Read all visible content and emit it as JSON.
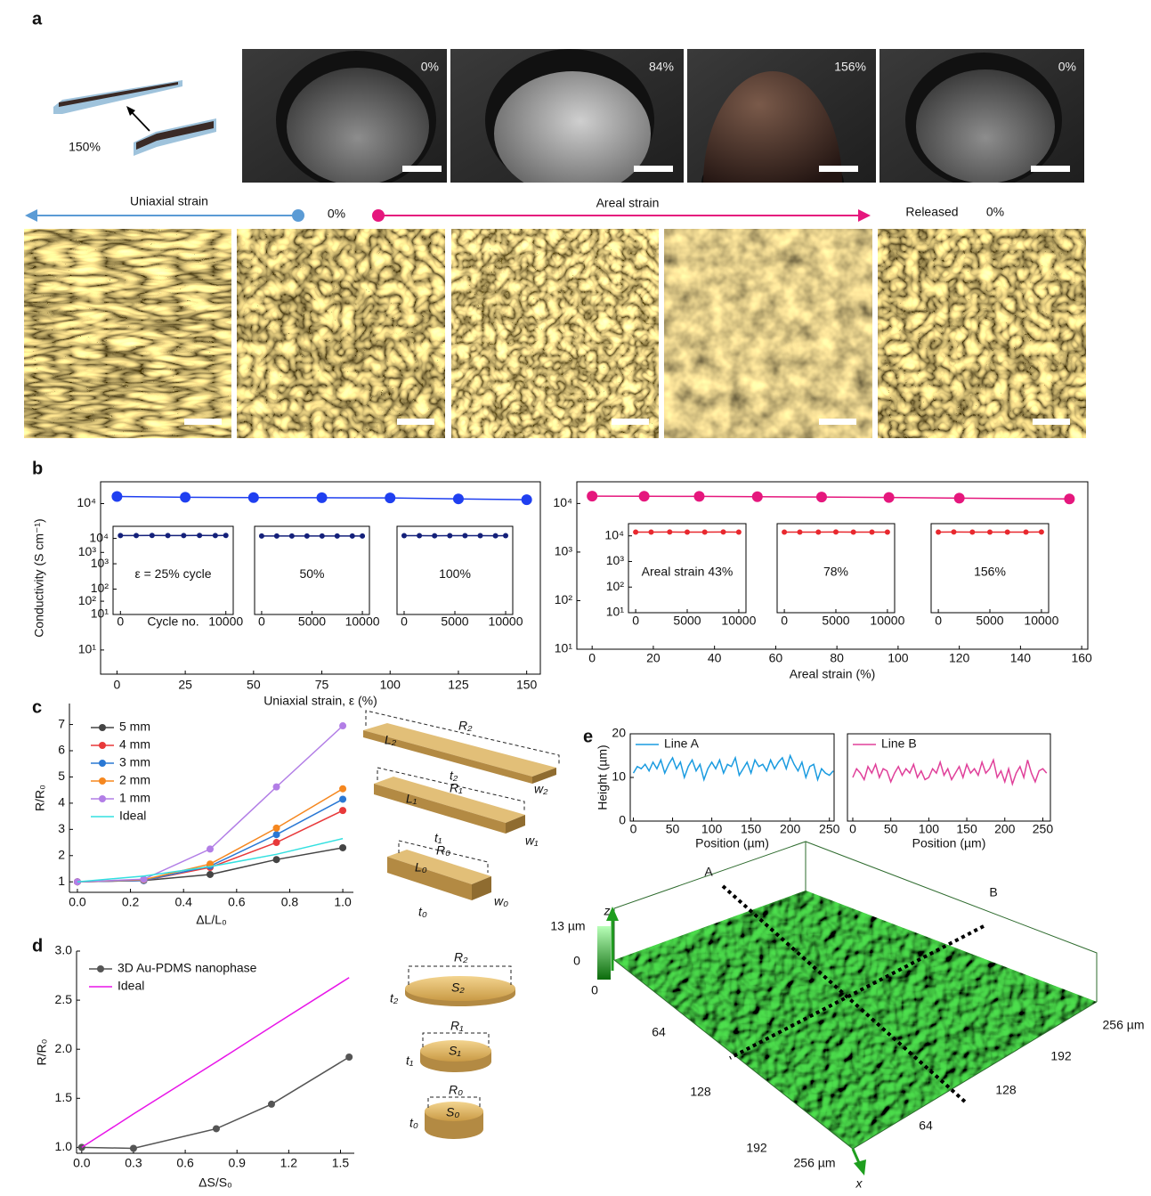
{
  "figure": {
    "panel_labels": [
      "a",
      "b",
      "c",
      "d",
      "e"
    ],
    "strip_label": "150%",
    "photo_labels": [
      "0%",
      "84%",
      "156%",
      "0%"
    ],
    "strain_row": {
      "uniaxial": "Uniaxial strain",
      "zero": "0%",
      "areal": "Areal strain",
      "released": "Released",
      "released_value": "0%"
    },
    "bar_labels": [
      "R₂",
      "L₂",
      "t₂",
      "w₂",
      "R₁",
      "L₁",
      "t₁",
      "w₁",
      "R₀",
      "L₀",
      "t₀",
      "w₀"
    ],
    "disc_labels": [
      "R₂",
      "S₂",
      "t₂",
      "R₁",
      "S₁",
      "t₁",
      "R₀",
      "S₀",
      "t₀"
    ],
    "surface_labels": {
      "z": "z",
      "z_max": "13 µm",
      "z_min": "0",
      "origin": "0",
      "x_ticks": [
        "64",
        "128",
        "192",
        "256 µm"
      ],
      "y_ticks": [
        "64",
        "128",
        "192",
        "256 µm"
      ],
      "x": "x",
      "line_a": "A",
      "line_b": "B"
    }
  },
  "chart_data": [
    {
      "type": "line",
      "xlabel": "Uniaxial strain, ε (%)",
      "ylabel": "Conductivity (S cm⁻¹)",
      "x": [
        0,
        25,
        50,
        75,
        100,
        125,
        150
      ],
      "xlim": [
        -6,
        155
      ],
      "xticks": [
        0,
        25,
        50,
        75,
        100,
        125,
        150
      ],
      "ylim": [
        3.2,
        28000
      ],
      "yscale": "log",
      "yticks": [
        {
          "value": 10,
          "label": "10¹"
        },
        {
          "value": 100,
          "label": "10²"
        },
        {
          "value": 1000,
          "label": "10³"
        },
        {
          "value": 10000,
          "label": "10⁴"
        }
      ],
      "series": [
        {
          "color": "#1f3ff0",
          "marker": true,
          "values": [
            14000,
            13500,
            13300,
            13200,
            13100,
            12500,
            12000
          ]
        }
      ]
    },
    {
      "type": "line",
      "xlabel": "Cycle no.",
      "annotation": "ε = 25% cycle",
      "x": [
        0,
        1500,
        3000,
        4500,
        6000,
        7500,
        9000,
        10000
      ],
      "xlim": [
        -700,
        10700
      ],
      "xticks": [
        0,
        10000
      ],
      "ylim": [
        10,
        30000
      ],
      "yscale": "log",
      "yticks": [
        {
          "value": 10,
          "label": "10¹"
        },
        {
          "value": 100,
          "label": "10²"
        },
        {
          "value": 1000,
          "label": "10³"
        },
        {
          "value": 10000,
          "label": "10⁴"
        }
      ],
      "series": [
        {
          "color": "#14207a",
          "marker": true,
          "values": [
            13000,
            13000,
            13100,
            13000,
            13000,
            13100,
            13000,
            13100
          ]
        }
      ]
    },
    {
      "type": "line",
      "annotation": "50%",
      "x": [
        0,
        1500,
        3000,
        4500,
        6000,
        7500,
        9000,
        10000
      ],
      "xlim": [
        -700,
        10700
      ],
      "xticks": [
        0,
        5000,
        10000
      ],
      "ylim": [
        10,
        30000
      ],
      "yscale": "log",
      "series": [
        {
          "color": "#14207a",
          "marker": true,
          "values": [
            12500,
            12400,
            12500,
            12500,
            12400,
            12500,
            12500,
            12500
          ]
        }
      ]
    },
    {
      "type": "line",
      "annotation": "100%",
      "x": [
        0,
        1500,
        3000,
        4500,
        6000,
        7500,
        9000,
        10000
      ],
      "xlim": [
        -700,
        10700
      ],
      "xticks": [
        0,
        5000,
        10000
      ],
      "ylim": [
        10,
        30000
      ],
      "yscale": "log",
      "series": [
        {
          "color": "#14207a",
          "marker": true,
          "values": [
            12800,
            12800,
            12700,
            12800,
            12800,
            12800,
            12700,
            12800
          ]
        }
      ]
    },
    {
      "type": "line",
      "xlabel": "Areal strain (%)",
      "x": [
        0,
        17,
        35,
        54,
        75,
        97,
        120,
        156
      ],
      "xlim": [
        -5,
        162
      ],
      "xticks": [
        0,
        20,
        40,
        60,
        80,
        100,
        120,
        140,
        160
      ],
      "ylim": [
        10,
        28000
      ],
      "yscale": "log",
      "yticks": [
        {
          "value": 10,
          "label": "10¹"
        },
        {
          "value": 100,
          "label": "10²"
        },
        {
          "value": 1000,
          "label": "10³"
        },
        {
          "value": 10000,
          "label": "10⁴"
        }
      ],
      "series": [
        {
          "color": "#e5177d",
          "marker": true,
          "values": [
            14200,
            14100,
            14000,
            13800,
            13600,
            13300,
            12900,
            12400
          ]
        }
      ]
    },
    {
      "type": "line",
      "annotation": "Areal strain 43%",
      "x": [
        0,
        1500,
        3300,
        5000,
        6700,
        8500,
        10000
      ],
      "xlim": [
        -700,
        10700
      ],
      "xticks": [
        0,
        5000,
        10000
      ],
      "ylim": [
        10,
        30000
      ],
      "yscale": "log",
      "yticks": [
        {
          "value": 10,
          "label": "10¹"
        },
        {
          "value": 100,
          "label": "10²"
        },
        {
          "value": 1000,
          "label": "10³"
        },
        {
          "value": 10000,
          "label": "10⁴"
        }
      ],
      "series": [
        {
          "color": "#e8282e",
          "marker": true,
          "values": [
            14000,
            14000,
            14100,
            14000,
            14000,
            14100,
            14000
          ]
        }
      ]
    },
    {
      "type": "line",
      "annotation": "78%",
      "x": [
        0,
        1500,
        3300,
        5000,
        6700,
        8500,
        10000
      ],
      "xlim": [
        -700,
        10700
      ],
      "xticks": [
        0,
        5000,
        10000
      ],
      "ylim": [
        10,
        30000
      ],
      "yscale": "log",
      "series": [
        {
          "color": "#e8282e",
          "marker": true,
          "values": [
            14000,
            14000,
            14000,
            14100,
            14000,
            14000,
            14000
          ]
        }
      ]
    },
    {
      "type": "line",
      "annotation": "156%",
      "x": [
        0,
        1500,
        3300,
        5000,
        6700,
        8500,
        10000
      ],
      "xlim": [
        -700,
        10700
      ],
      "xticks": [
        0,
        5000,
        10000
      ],
      "ylim": [
        10,
        30000
      ],
      "yscale": "log",
      "series": [
        {
          "color": "#e8282e",
          "marker": true,
          "values": [
            14000,
            14100,
            14000,
            14000,
            14000,
            14000,
            14100
          ]
        }
      ]
    },
    {
      "type": "line",
      "xlabel": "ΔL/L₀",
      "ylabel": "R/R₀",
      "legend": "upper left",
      "x": [
        0,
        0.25,
        0.5,
        0.75,
        1.0
      ],
      "xlim": [
        -0.03,
        1.04
      ],
      "xticks": [
        {
          "value": 0,
          "label": "0.0"
        },
        0.2,
        0.4,
        0.6,
        0.8,
        {
          "value": 1,
          "label": "1.0"
        }
      ],
      "ylim": [
        0.6,
        7.8
      ],
      "yticks": [
        1,
        2,
        3,
        4,
        5,
        6,
        7
      ],
      "series": [
        {
          "name": "5 mm",
          "color": "#444444",
          "marker": true,
          "values": [
            1.0,
            1.05,
            1.28,
            1.85,
            2.3
          ]
        },
        {
          "name": "4 mm",
          "color": "#e8393a",
          "marker": true,
          "values": [
            1.0,
            1.05,
            1.55,
            2.5,
            3.72
          ]
        },
        {
          "name": "3 mm",
          "color": "#2a78d4",
          "marker": true,
          "values": [
            1.0,
            1.05,
            1.6,
            2.8,
            4.15
          ]
        },
        {
          "name": "2 mm",
          "color": "#f5871f",
          "marker": true,
          "values": [
            1.0,
            1.08,
            1.68,
            3.05,
            4.55
          ]
        },
        {
          "name": "1 mm",
          "color": "#b27ee6",
          "marker": true,
          "values": [
            1.0,
            1.1,
            2.25,
            4.62,
            6.95
          ]
        },
        {
          "name": "Ideal",
          "color": "#33e0e0",
          "marker": false,
          "values": [
            1.0,
            1.22,
            1.58,
            2.05,
            2.65
          ]
        }
      ]
    },
    {
      "type": "line",
      "xlabel": "ΔS/S₀",
      "ylabel": "R/R₀",
      "legend": "upper left",
      "x": [
        0,
        0.3,
        0.78,
        1.1,
        1.55
      ],
      "xlim": [
        -0.03,
        1.58
      ],
      "xticks": [
        {
          "value": 0,
          "label": "0.0"
        },
        0.3,
        0.6,
        0.9,
        1.2,
        1.5
      ],
      "ylim": [
        0.94,
        3.0
      ],
      "yticks": [
        {
          "value": 1,
          "label": "1.0"
        },
        1.5,
        {
          "value": 2,
          "label": "2.0"
        },
        2.5,
        {
          "value": 3,
          "label": "3.0"
        }
      ],
      "series": [
        {
          "name": "3D Au-PDMS nanophase",
          "color": "#555555",
          "marker": true,
          "values": [
            1.0,
            0.99,
            1.19,
            1.44,
            1.92
          ]
        },
        {
          "name": "Ideal",
          "color": "#e815e8",
          "marker": false,
          "values": [
            1.0,
            1.34,
            1.87,
            2.23,
            2.73
          ]
        }
      ]
    },
    {
      "type": "line",
      "xlabel": "Position (µm)",
      "ylabel": "Height (µm)",
      "legend": "upper left",
      "x": [
        0,
        5,
        10,
        15,
        20,
        25,
        30,
        35,
        40,
        45,
        50,
        55,
        60,
        65,
        70,
        75,
        80,
        85,
        90,
        95,
        100,
        105,
        110,
        115,
        120,
        125,
        130,
        135,
        140,
        145,
        150,
        155,
        160,
        165,
        170,
        175,
        180,
        185,
        190,
        195,
        200,
        205,
        210,
        215,
        220,
        225,
        230,
        235,
        240,
        245,
        250,
        255
      ],
      "xlim": [
        -4,
        256
      ],
      "xticks": [
        0,
        50,
        100,
        150,
        200,
        250
      ],
      "ylim": [
        0,
        20
      ],
      "yticks": [
        0,
        10,
        20
      ],
      "series": [
        {
          "name": "Line A",
          "color": "#1a9be0",
          "marker": false,
          "values": [
            11,
            12.5,
            12,
            13,
            11.5,
            13.5,
            12,
            14,
            11,
            13,
            14.5,
            12,
            13.5,
            10,
            12.5,
            14,
            11.5,
            13,
            9.5,
            12,
            13.5,
            12,
            14,
            11,
            13,
            12.5,
            14.5,
            10.5,
            12,
            13.5,
            11,
            14,
            12.5,
            13,
            11.5,
            14,
            12,
            13.5,
            14.5,
            12,
            15,
            13,
            11.5,
            13.5,
            10,
            12.5,
            13,
            9.5,
            12,
            11,
            10.5,
            11.5
          ]
        }
      ]
    },
    {
      "type": "line",
      "xlabel": "Position (µm)",
      "legend": "upper left",
      "x": [
        0,
        5,
        10,
        15,
        20,
        25,
        30,
        35,
        40,
        45,
        50,
        55,
        60,
        65,
        70,
        75,
        80,
        85,
        90,
        95,
        100,
        105,
        110,
        115,
        120,
        125,
        130,
        135,
        140,
        145,
        150,
        155,
        160,
        165,
        170,
        175,
        180,
        185,
        190,
        195,
        200,
        205,
        210,
        215,
        220,
        225,
        230,
        235,
        240,
        245,
        250,
        255
      ],
      "xlim": [
        -7,
        260
      ],
      "xticks": [
        0,
        50,
        100,
        150,
        200,
        250
      ],
      "ylim": [
        0,
        20
      ],
      "series": [
        {
          "name": "Line B",
          "color": "#e0409a",
          "marker": false,
          "values": [
            10,
            12,
            11,
            9.5,
            12.5,
            11,
            13,
            10,
            12,
            11.5,
            9,
            11,
            12.5,
            10.5,
            12,
            11,
            13,
            10,
            11.5,
            9.5,
            10,
            12,
            11,
            13.5,
            10.5,
            12,
            9.5,
            11,
            12.5,
            10,
            13,
            11,
            12,
            10.5,
            13.5,
            11,
            12,
            14,
            10,
            11.5,
            9,
            12,
            8.5,
            11,
            12.5,
            10,
            14,
            11,
            9,
            11.5,
            12,
            11
          ]
        }
      ]
    }
  ]
}
